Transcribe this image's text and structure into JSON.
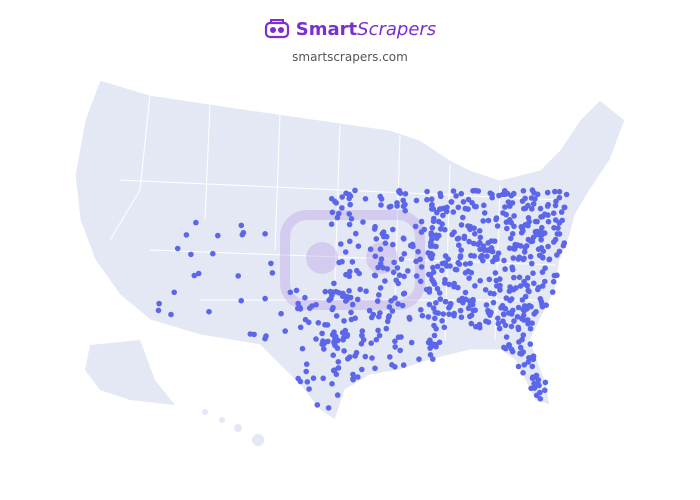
{
  "header": {
    "brand_bold": "Smart",
    "brand_italic": "Scrapers",
    "url": "smartscrapers.com"
  }
}
